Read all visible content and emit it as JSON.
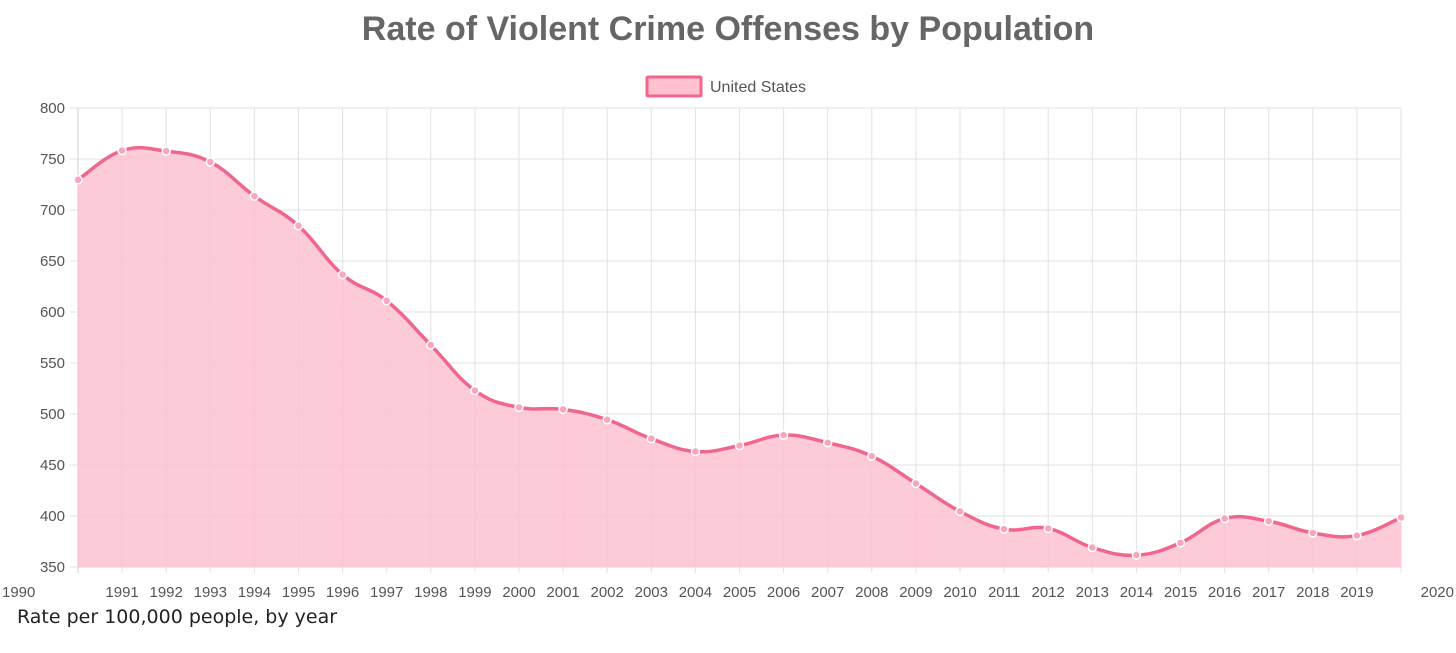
{
  "colors": {
    "line": "#f0668c",
    "fill": "#fdc1d0",
    "grid": "#e2e2e2",
    "axis": "#cfcfcf"
  },
  "caption": "Rate per 100,000 people, by year",
  "chart_data": {
    "type": "area",
    "title": "Rate of Violent Crime Offenses by Population",
    "legend": {
      "position": "top",
      "entries": [
        "United States"
      ]
    },
    "grid": true,
    "xlabel": "",
    "ylabel": "",
    "ylim": [
      350,
      800
    ],
    "yticks": [
      "350",
      "400",
      "450",
      "500",
      "550",
      "600",
      "650",
      "700",
      "750",
      "800"
    ],
    "x": [
      "1990",
      "1991",
      "1992",
      "1993",
      "1994",
      "1995",
      "1996",
      "1997",
      "1998",
      "1999",
      "2000",
      "2001",
      "2002",
      "2003",
      "2004",
      "2005",
      "2006",
      "2007",
      "2008",
      "2009",
      "2010",
      "2011",
      "2012",
      "2013",
      "2014",
      "2015",
      "2016",
      "2017",
      "2018",
      "2019",
      "2020"
    ],
    "series": [
      {
        "name": "United States",
        "values": [
          729.6,
          758.2,
          757.7,
          747.1,
          713.6,
          684.5,
          636.6,
          611.0,
          567.6,
          523.0,
          506.5,
          504.5,
          494.4,
          475.8,
          463.2,
          469.0,
          479.3,
          471.8,
          458.6,
          431.9,
          404.5,
          387.1,
          387.8,
          369.1,
          361.6,
          373.7,
          397.5,
          394.9,
          383.4,
          380.8,
          398.5
        ]
      }
    ]
  }
}
